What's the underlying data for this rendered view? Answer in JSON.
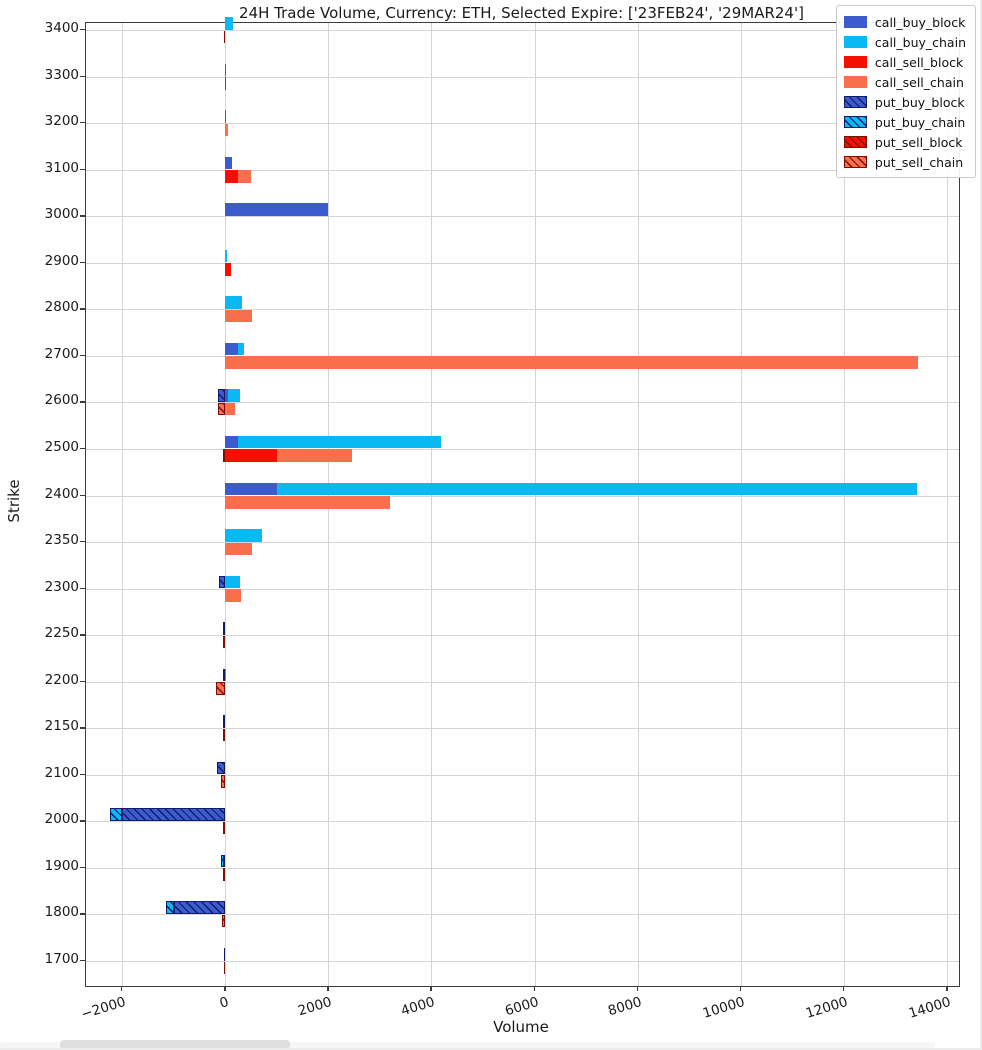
{
  "colors": {
    "figure_background": "#ffffff",
    "grid": "#d4d4d4",
    "spine": "#3c3c3c",
    "text": "#1a1a1a",
    "call_buy_block": "#3B5BCE",
    "call_buy_chain": "#0AB9F4",
    "call_sell_block": "#F50F00",
    "call_sell_chain": "#F96E4C",
    "put_hatch_blue": "#101c66",
    "put_hatch_red": "#7a1005"
  },
  "chart_data": {
    "type": "bar",
    "orientation": "horizontal",
    "title": "24H Trade Volume, Currency: ETH, Selected Expire: ['23FEB24', '29MAR24']",
    "xlabel": "Volume",
    "ylabel": "Strike",
    "grid": true,
    "legend_position": "upper right",
    "xlim": [
      -2700,
      14230
    ],
    "xticks": [
      -2000,
      0,
      2000,
      4000,
      6000,
      8000,
      10000,
      12000,
      14000
    ],
    "xtick_labels": [
      "−2000",
      "0",
      "2000",
      "4000",
      "6000",
      "8000",
      "10000",
      "12000",
      "14000"
    ],
    "legend": [
      {
        "label": "call_buy_block",
        "color": "#3B5BCE",
        "hatch": false,
        "hatch_color": "#101c66"
      },
      {
        "label": "call_buy_chain",
        "color": "#0AB9F4",
        "hatch": false,
        "hatch_color": "#101c66"
      },
      {
        "label": "call_sell_block",
        "color": "#F50F00",
        "hatch": false,
        "hatch_color": "#7a1005"
      },
      {
        "label": "call_sell_chain",
        "color": "#F96E4C",
        "hatch": false,
        "hatch_color": "#7a1005"
      },
      {
        "label": "put_buy_block",
        "color": "#3B5BCE",
        "hatch": true,
        "hatch_color": "#101c66"
      },
      {
        "label": "put_buy_chain",
        "color": "#0AB9F4",
        "hatch": true,
        "hatch_color": "#101c66"
      },
      {
        "label": "put_sell_block",
        "color": "#F50F00",
        "hatch": true,
        "hatch_color": "#7a1005"
      },
      {
        "label": "put_sell_chain",
        "color": "#F96E4C",
        "hatch": true,
        "hatch_color": "#7a1005"
      }
    ],
    "rows": [
      {
        "strike": 3400,
        "call_buy_block": 0,
        "call_buy_chain": 160,
        "call_sell_block": 0,
        "call_sell_chain": 0,
        "put_buy_block": 0,
        "put_buy_chain": 0,
        "put_sell_block": -20,
        "put_sell_chain": 0
      },
      {
        "strike": 3300,
        "call_buy_block": 20,
        "call_buy_chain": 0,
        "call_sell_block": 20,
        "call_sell_chain": 0,
        "put_buy_block": 0,
        "put_buy_chain": 0,
        "put_sell_block": 0,
        "put_sell_chain": 0
      },
      {
        "strike": 3200,
        "call_buy_block": 10,
        "call_buy_chain": 0,
        "call_sell_block": 0,
        "call_sell_chain": 50,
        "put_buy_block": 0,
        "put_buy_chain": 0,
        "put_sell_block": 0,
        "put_sell_chain": 0
      },
      {
        "strike": 3100,
        "call_buy_block": 130,
        "call_buy_chain": 0,
        "call_sell_block": 250,
        "call_sell_chain": 250,
        "put_buy_block": 0,
        "put_buy_chain": 0,
        "put_sell_block": 0,
        "put_sell_chain": 0
      },
      {
        "strike": 3000,
        "call_buy_block": 2000,
        "call_buy_chain": 0,
        "call_sell_block": 0,
        "call_sell_chain": 0,
        "put_buy_block": 0,
        "put_buy_chain": 0,
        "put_sell_block": 0,
        "put_sell_chain": 0
      },
      {
        "strike": 2900,
        "call_buy_block": 0,
        "call_buy_chain": 40,
        "call_sell_block": 120,
        "call_sell_chain": 0,
        "put_buy_block": 0,
        "put_buy_chain": 0,
        "put_sell_block": 0,
        "put_sell_chain": 0
      },
      {
        "strike": 2800,
        "call_buy_block": 0,
        "call_buy_chain": 320,
        "call_sell_block": 0,
        "call_sell_chain": 510,
        "put_buy_block": 0,
        "put_buy_chain": 0,
        "put_sell_block": 0,
        "put_sell_chain": 0
      },
      {
        "strike": 2700,
        "call_buy_block": 250,
        "call_buy_chain": 115,
        "call_sell_block": 0,
        "call_sell_chain": 13440,
        "put_buy_block": 0,
        "put_buy_chain": 0,
        "put_sell_block": 0,
        "put_sell_chain": 0
      },
      {
        "strike": 2600,
        "call_buy_block": 50,
        "call_buy_chain": 240,
        "call_sell_block": 0,
        "call_sell_chain": 190,
        "put_buy_block": -140,
        "put_buy_chain": 0,
        "put_sell_block": 0,
        "put_sell_chain": -140
      },
      {
        "strike": 2500,
        "call_buy_block": 240,
        "call_buy_chain": 3950,
        "call_sell_block": 1000,
        "call_sell_chain": 1450,
        "put_buy_block": 0,
        "put_buy_chain": 0,
        "put_sell_block": 0,
        "put_sell_chain": -50
      },
      {
        "strike": 2400,
        "call_buy_block": 1000,
        "call_buy_chain": 12410,
        "call_sell_block": 0,
        "call_sell_chain": 3200,
        "put_buy_block": 0,
        "put_buy_chain": 0,
        "put_sell_block": 0,
        "put_sell_chain": 0
      },
      {
        "strike": 2350,
        "call_buy_block": 0,
        "call_buy_chain": 720,
        "call_sell_block": 0,
        "call_sell_chain": 520,
        "put_buy_block": 0,
        "put_buy_chain": 0,
        "put_sell_block": 0,
        "put_sell_chain": 0
      },
      {
        "strike": 2300,
        "call_buy_block": 0,
        "call_buy_chain": 290,
        "call_sell_block": 0,
        "call_sell_chain": 300,
        "put_buy_block": -130,
        "put_buy_chain": 0,
        "put_sell_block": 0,
        "put_sell_chain": 0
      },
      {
        "strike": 2250,
        "call_buy_block": 0,
        "call_buy_chain": 0,
        "call_sell_block": 0,
        "call_sell_chain": 0,
        "put_buy_block": -50,
        "put_buy_chain": 0,
        "put_sell_block": 0,
        "put_sell_chain": -40
      },
      {
        "strike": 2200,
        "call_buy_block": 0,
        "call_buy_chain": 20,
        "call_sell_block": 0,
        "call_sell_chain": 0,
        "put_buy_block": 0,
        "put_buy_chain": -40,
        "put_sell_block": 0,
        "put_sell_chain": -170
      },
      {
        "strike": 2150,
        "call_buy_block": 0,
        "call_buy_chain": 0,
        "call_sell_block": 0,
        "call_sell_chain": 0,
        "put_buy_block": -50,
        "put_buy_chain": 0,
        "put_sell_block": 0,
        "put_sell_chain": -50
      },
      {
        "strike": 2100,
        "call_buy_block": 0,
        "call_buy_chain": 0,
        "call_sell_block": 0,
        "call_sell_chain": 0,
        "put_buy_block": -160,
        "put_buy_chain": 0,
        "put_sell_block": 0,
        "put_sell_chain": -90
      },
      {
        "strike": 2000,
        "call_buy_block": 0,
        "call_buy_chain": 0,
        "call_sell_block": 0,
        "call_sell_chain": 0,
        "put_buy_block": -2000,
        "put_buy_chain": -230,
        "put_sell_block": -40,
        "put_sell_chain": 0
      },
      {
        "strike": 1900,
        "call_buy_block": 0,
        "call_buy_chain": 0,
        "call_sell_block": 0,
        "call_sell_chain": 0,
        "put_buy_block": -20,
        "put_buy_chain": -60,
        "put_sell_block": 0,
        "put_sell_chain": -50
      },
      {
        "strike": 1800,
        "call_buy_block": 0,
        "call_buy_chain": 0,
        "call_sell_block": 0,
        "call_sell_chain": 0,
        "put_buy_block": -1000,
        "put_buy_chain": -150,
        "put_sell_block": 0,
        "put_sell_chain": -60
      },
      {
        "strike": 1700,
        "call_buy_block": 0,
        "call_buy_chain": 0,
        "call_sell_block": 0,
        "call_sell_chain": 0,
        "put_buy_block": -30,
        "put_buy_chain": 0,
        "put_sell_block": -30,
        "put_sell_chain": 0
      }
    ]
  }
}
